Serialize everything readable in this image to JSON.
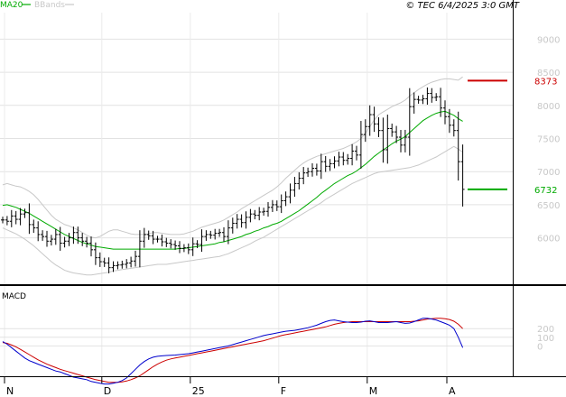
{
  "header": {
    "legend": [
      {
        "label": "MA20",
        "color": "#00aa00"
      },
      {
        "label": "BBands",
        "color": "#c8c8c8"
      }
    ],
    "copyright": "© TEC 6/4/2025 3:0 GMT"
  },
  "chart_data": [
    {
      "type": "candlestick",
      "title": "",
      "ylim": [
        5300,
        9400
      ],
      "yticks": [
        6000,
        6500,
        7000,
        7500,
        8000,
        8500,
        9000
      ],
      "xtick_labels": [
        "N",
        "D",
        "25",
        "F",
        "M",
        "A"
      ],
      "grid": true,
      "close": [
        6270,
        6250,
        6330,
        6280,
        6360,
        6380,
        6200,
        6150,
        6050,
        6020,
        5950,
        5980,
        6050,
        5920,
        5950,
        6000,
        6080,
        6000,
        5950,
        5920,
        5820,
        5700,
        5640,
        5620,
        5550,
        5580,
        5590,
        5600,
        5620,
        5650,
        5720,
        5950,
        6050,
        6030,
        5980,
        5980,
        5940,
        5920,
        5900,
        5880,
        5840,
        5850,
        5820,
        5910,
        5900,
        6020,
        6050,
        6040,
        6070,
        6080,
        6020,
        6150,
        6220,
        6280,
        6230,
        6310,
        6360,
        6340,
        6390,
        6400,
        6460,
        6500,
        6470,
        6560,
        6620,
        6720,
        6820,
        6900,
        6980,
        7000,
        7050,
        7010,
        7150,
        7080,
        7120,
        7160,
        7220,
        7170,
        7200,
        7310,
        7250,
        7560,
        7680,
        7860,
        7720,
        7620,
        7330,
        7650,
        7600,
        7520,
        7400,
        7520,
        7980,
        8090,
        8080,
        8100,
        8180,
        8120,
        8130,
        7960,
        7830,
        7700,
        7620,
        7150,
        6732
      ],
      "ma20": [
        6490,
        6500,
        6480,
        6460,
        6430,
        6400,
        6370,
        6330,
        6290,
        6250,
        6210,
        6170,
        6130,
        6090,
        6050,
        6020,
        5990,
        5960,
        5930,
        5910,
        5890,
        5870,
        5860,
        5850,
        5840,
        5830,
        5830,
        5830,
        5830,
        5830,
        5830,
        5830,
        5830,
        5830,
        5830,
        5830,
        5830,
        5830,
        5830,
        5830,
        5840,
        5840,
        5850,
        5860,
        5870,
        5880,
        5890,
        5900,
        5910,
        5930,
        5940,
        5960,
        5980,
        6000,
        6020,
        6050,
        6070,
        6100,
        6120,
        6150,
        6170,
        6200,
        6220,
        6250,
        6290,
        6330,
        6370,
        6410,
        6460,
        6510,
        6560,
        6610,
        6670,
        6720,
        6770,
        6820,
        6860,
        6900,
        6940,
        6970,
        7010,
        7060,
        7110,
        7170,
        7230,
        7280,
        7330,
        7370,
        7420,
        7460,
        7490,
        7530,
        7590,
        7650,
        7710,
        7770,
        7810,
        7850,
        7880,
        7900,
        7910,
        7880,
        7850,
        7800,
        7760
      ],
      "bb_upper": [
        6800,
        6820,
        6800,
        6780,
        6770,
        6740,
        6700,
        6650,
        6580,
        6500,
        6420,
        6340,
        6280,
        6240,
        6200,
        6180,
        6150,
        6120,
        6080,
        6040,
        6010,
        6000,
        6020,
        6060,
        6100,
        6120,
        6120,
        6100,
        6080,
        6060,
        6050,
        6050,
        6050,
        6060,
        6080,
        6080,
        6070,
        6060,
        6050,
        6050,
        6050,
        6060,
        6080,
        6100,
        6130,
        6160,
        6180,
        6200,
        6220,
        6240,
        6270,
        6310,
        6350,
        6390,
        6440,
        6480,
        6520,
        6560,
        6600,
        6640,
        6680,
        6720,
        6770,
        6830,
        6900,
        6960,
        7020,
        7080,
        7130,
        7170,
        7200,
        7230,
        7250,
        7270,
        7290,
        7310,
        7330,
        7350,
        7380,
        7410,
        7450,
        7500,
        7580,
        7680,
        7780,
        7860,
        7900,
        7940,
        7980,
        8010,
        8040,
        8080,
        8140,
        8190,
        8240,
        8280,
        8320,
        8350,
        8370,
        8390,
        8400,
        8400,
        8390,
        8380,
        8430
      ],
      "bb_lower": [
        6150,
        6120,
        6090,
        6060,
        6020,
        5980,
        5930,
        5880,
        5820,
        5760,
        5700,
        5640,
        5590,
        5550,
        5510,
        5490,
        5470,
        5460,
        5450,
        5440,
        5440,
        5450,
        5460,
        5470,
        5480,
        5500,
        5510,
        5520,
        5530,
        5540,
        5550,
        5560,
        5570,
        5580,
        5590,
        5600,
        5600,
        5600,
        5610,
        5620,
        5630,
        5640,
        5650,
        5660,
        5670,
        5680,
        5690,
        5700,
        5710,
        5720,
        5740,
        5760,
        5790,
        5820,
        5850,
        5880,
        5910,
        5950,
        5980,
        6010,
        6050,
        6090,
        6130,
        6170,
        6210,
        6250,
        6290,
        6330,
        6370,
        6410,
        6450,
        6490,
        6530,
        6580,
        6620,
        6660,
        6700,
        6740,
        6780,
        6820,
        6850,
        6880,
        6910,
        6940,
        6970,
        6990,
        7000,
        7010,
        7020,
        7030,
        7040,
        7050,
        7060,
        7080,
        7100,
        7130,
        7160,
        7190,
        7220,
        7260,
        7300,
        7340,
        7380,
        7340,
        7290
      ],
      "price_labels": [
        {
          "value": 8373,
          "text": "8373",
          "color": "#cc0000"
        },
        {
          "value": 6732,
          "text": "6732",
          "color": "#00aa00"
        }
      ]
    },
    {
      "type": "line",
      "title": "MACD",
      "ylim": [
        -350,
        650
      ],
      "yticks": [
        0,
        100,
        200
      ],
      "macd": [
        50,
        20,
        -20,
        -60,
        -100,
        -140,
        -170,
        -190,
        -210,
        -230,
        -250,
        -270,
        -290,
        -300,
        -320,
        -340,
        -360,
        -370,
        -380,
        -390,
        -410,
        -420,
        -430,
        -440,
        -440,
        -430,
        -420,
        -400,
        -370,
        -320,
        -270,
        -220,
        -180,
        -150,
        -130,
        -120,
        -115,
        -110,
        -108,
        -105,
        -100,
        -95,
        -90,
        -80,
        -70,
        -60,
        -50,
        -40,
        -30,
        -20,
        -10,
        0,
        15,
        30,
        45,
        60,
        75,
        90,
        105,
        120,
        130,
        140,
        150,
        160,
        170,
        175,
        180,
        190,
        200,
        210,
        225,
        240,
        260,
        280,
        295,
        300,
        290,
        280,
        275,
        270,
        270,
        275,
        285,
        290,
        280,
        270,
        270,
        270,
        275,
        280,
        270,
        260,
        265,
        280,
        300,
        320,
        320,
        310,
        300,
        280,
        260,
        240,
        200,
        100,
        -20
      ],
      "signal": [
        40,
        30,
        10,
        -10,
        -40,
        -70,
        -100,
        -130,
        -160,
        -185,
        -210,
        -230,
        -250,
        -270,
        -285,
        -300,
        -315,
        -330,
        -345,
        -360,
        -375,
        -390,
        -400,
        -410,
        -420,
        -420,
        -420,
        -415,
        -405,
        -390,
        -370,
        -345,
        -310,
        -275,
        -240,
        -210,
        -185,
        -165,
        -150,
        -140,
        -130,
        -120,
        -110,
        -100,
        -90,
        -80,
        -70,
        -60,
        -50,
        -40,
        -30,
        -20,
        -10,
        0,
        10,
        20,
        30,
        40,
        50,
        60,
        75,
        90,
        105,
        120,
        130,
        140,
        150,
        160,
        170,
        180,
        190,
        200,
        210,
        220,
        235,
        250,
        260,
        270,
        275,
        280,
        280,
        280,
        280,
        280,
        280,
        280,
        280,
        280,
        280,
        280,
        280,
        280,
        280,
        285,
        290,
        300,
        310,
        315,
        320,
        320,
        315,
        305,
        285,
        250,
        200
      ]
    }
  ]
}
